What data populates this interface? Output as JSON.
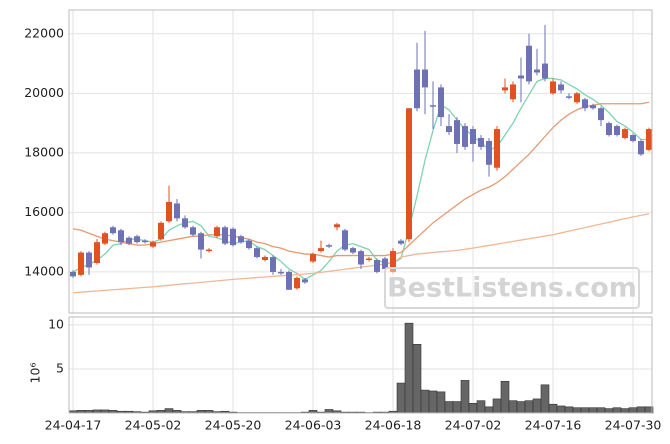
{
  "chart_data": [
    {
      "type": "candlestick",
      "open": [
        14000,
        13900,
        14650,
        14300,
        14950,
        15500,
        15400,
        15150,
        15200,
        15050,
        14850,
        15100,
        15700,
        16300,
        15800,
        15500,
        15300,
        14700,
        15200,
        15500,
        15450,
        15200,
        15050,
        14800,
        14400,
        14500,
        14000,
        14000,
        13450,
        13750,
        14350,
        14700,
        14900,
        15500,
        15400,
        14800,
        14700,
        14400,
        14400,
        14450,
        14000,
        15050,
        15100,
        20800,
        20800,
        19600,
        20200,
        18900,
        19100,
        18900,
        18800,
        18500,
        18400,
        17500,
        20100,
        19800,
        20600,
        21600,
        20800,
        21000,
        20000,
        20300,
        19900,
        19700,
        19800,
        19600,
        19500,
        19000,
        18900,
        18500,
        18600,
        18400,
        18100
      ],
      "high": [
        14050,
        14700,
        14700,
        15100,
        15350,
        15550,
        15450,
        15200,
        15250,
        15100,
        15050,
        15700,
        16900,
        16450,
        15900,
        15550,
        15350,
        14800,
        15550,
        15550,
        15500,
        15250,
        15100,
        14850,
        14550,
        14550,
        14100,
        14050,
        13850,
        13800,
        14650,
        15050,
        14950,
        15650,
        15450,
        14850,
        14750,
        14500,
        14450,
        14500,
        14800,
        15100,
        19500,
        21700,
        22100,
        20400,
        20300,
        19300,
        19200,
        19000,
        18900,
        18600,
        18500,
        18900,
        20500,
        20400,
        21200,
        22000,
        21500,
        22300,
        20500,
        20400,
        20000,
        20050,
        19850,
        19650,
        19550,
        19050,
        18950,
        18850,
        18650,
        18450,
        18850
      ],
      "low": [
        13800,
        13850,
        13900,
        14250,
        14900,
        15250,
        14900,
        14900,
        14950,
        14950,
        14800,
        15050,
        15650,
        15700,
        15450,
        15200,
        14450,
        14650,
        15150,
        14900,
        14850,
        14950,
        14750,
        14450,
        14350,
        13900,
        13900,
        13400,
        13400,
        13600,
        14300,
        14650,
        14800,
        15400,
        14700,
        14600,
        14100,
        14350,
        13950,
        14050,
        13950,
        14900,
        15000,
        19400,
        19300,
        18800,
        18900,
        18600,
        18000,
        18100,
        17700,
        18100,
        17200,
        17400,
        20000,
        19700,
        19700,
        20300,
        20600,
        20400,
        19950,
        20000,
        19800,
        19650,
        19400,
        19450,
        18900,
        18550,
        18550,
        18450,
        18350,
        17900,
        18050
      ],
      "close": [
        13850,
        14650,
        14150,
        15000,
        15300,
        15300,
        15000,
        14950,
        15000,
        15000,
        15000,
        15650,
        16350,
        15800,
        15500,
        15250,
        14750,
        14750,
        15500,
        14950,
        14900,
        15000,
        14800,
        14500,
        14500,
        14000,
        13950,
        13400,
        13800,
        13650,
        14600,
        14800,
        14850,
        15600,
        14750,
        14650,
        14250,
        14450,
        14000,
        14100,
        14700,
        14950,
        19500,
        19500,
        20200,
        19550,
        19200,
        18700,
        18300,
        18200,
        18300,
        18200,
        17600,
        18800,
        20200,
        20300,
        20500,
        20400,
        20700,
        20500,
        20400,
        20100,
        19850,
        20000,
        19500,
        19500,
        19100,
        18600,
        18600,
        18800,
        18400,
        17950,
        18800
      ],
      "up_color": "#e0521f",
      "down_color": "#6e72b4",
      "series": [
        {
          "color": "#7fd3b0",
          "values": [
            14000,
            14150,
            14250,
            14400,
            14600,
            14900,
            14950,
            15100,
            15100,
            15050,
            15000,
            15100,
            15400,
            15550,
            15650,
            15700,
            15550,
            15200,
            15150,
            15050,
            14950,
            15000,
            15050,
            14850,
            14750,
            14550,
            14350,
            14100,
            13950,
            13750,
            13900,
            14050,
            14350,
            14700,
            14900,
            14950,
            14850,
            14750,
            14400,
            14300,
            14300,
            14450,
            15450,
            16550,
            17750,
            18750,
            19600,
            19450,
            19100,
            18800,
            18550,
            18350,
            18100,
            18200,
            18600,
            19000,
            19500,
            19950,
            20400,
            20500,
            20500,
            20450,
            20300,
            20150,
            19950,
            19800,
            19600,
            19350,
            19050,
            18900,
            18700,
            18450,
            18450
          ]
        },
        {
          "color": "#e69a70",
          "values": [
            15450,
            15400,
            15300,
            15200,
            15100,
            15050,
            15000,
            14950,
            14900,
            14900,
            14950,
            15000,
            15050,
            15100,
            15150,
            15200,
            15200,
            15250,
            15250,
            15250,
            15200,
            15150,
            15100,
            15000,
            14950,
            14850,
            14800,
            14700,
            14650,
            14600,
            14600,
            14550,
            14500,
            14550,
            14550,
            14550,
            14550,
            14550,
            14550,
            14550,
            14600,
            14650,
            14900,
            15150,
            15400,
            15650,
            15850,
            16050,
            16250,
            16450,
            16600,
            16750,
            16850,
            17000,
            17200,
            17450,
            17700,
            17950,
            18250,
            18550,
            18850,
            19100,
            19300,
            19450,
            19550,
            19600,
            19650,
            19650,
            19650,
            19650,
            19650,
            19650,
            19700
          ]
        },
        {
          "color": "#f0b894",
          "values": [
            13300,
            13320,
            13340,
            13360,
            13380,
            13400,
            13420,
            13440,
            13460,
            13480,
            13500,
            13525,
            13550,
            13575,
            13600,
            13625,
            13650,
            13675,
            13700,
            13725,
            13750,
            13770,
            13790,
            13810,
            13830,
            13850,
            13870,
            13890,
            13910,
            13930,
            13950,
            13985,
            14020,
            14055,
            14090,
            14125,
            14160,
            14195,
            14230,
            14265,
            14300,
            14500,
            14550,
            14600,
            14625,
            14650,
            14675,
            14700,
            14725,
            14760,
            14800,
            14845,
            14890,
            14935,
            14980,
            15025,
            15070,
            15115,
            15160,
            15205,
            15250,
            15310,
            15370,
            15430,
            15490,
            15550,
            15610,
            15670,
            15730,
            15790,
            15850,
            15900,
            15950
          ]
        }
      ],
      "ylim": [
        12620,
        22800
      ],
      "yticks": [
        14000,
        16000,
        18000,
        20000,
        22000
      ],
      "grid": true
    },
    {
      "type": "bar",
      "color": "#666666",
      "y_label": "10⁶",
      "categories": [
        "24-04-17",
        null,
        null,
        null,
        null,
        null,
        null,
        null,
        null,
        null,
        "24-05-02",
        null,
        null,
        null,
        null,
        null,
        null,
        null,
        null,
        null,
        "24-05-20",
        null,
        null,
        null,
        null,
        null,
        null,
        null,
        null,
        null,
        "24-06-03",
        null,
        null,
        null,
        null,
        null,
        null,
        null,
        null,
        null,
        "24-06-18",
        null,
        null,
        null,
        null,
        null,
        null,
        null,
        null,
        null,
        "24-07-02",
        null,
        null,
        null,
        null,
        null,
        null,
        null,
        null,
        null,
        "24-07-16",
        null,
        null,
        null,
        null,
        null,
        null,
        null,
        null,
        null,
        "24-07-30",
        null,
        null
      ],
      "values": [
        0.25,
        0.3,
        0.3,
        0.35,
        0.35,
        0.3,
        0.2,
        0.2,
        0.15,
        0.1,
        0.25,
        0.3,
        0.5,
        0.3,
        0.15,
        0.15,
        0.3,
        0.3,
        0.15,
        0.2,
        0.1,
        0.05,
        0.05,
        0.05,
        0.05,
        0.05,
        0.05,
        0.05,
        0.05,
        0.1,
        0.3,
        0.1,
        0.4,
        0.25,
        0.1,
        0.1,
        0.1,
        0.05,
        0.1,
        0.1,
        0.2,
        3.4,
        10.2,
        7.8,
        2.6,
        2.5,
        2.4,
        1.3,
        1.3,
        3.7,
        1.1,
        1.4,
        0.7,
        1.6,
        3.6,
        1.4,
        1.3,
        1.4,
        1.6,
        3.2,
        1.0,
        0.8,
        0.7,
        0.6,
        0.6,
        0.6,
        0.6,
        0.5,
        0.6,
        0.5,
        0.6,
        0.7,
        0.7
      ],
      "ylim": [
        0,
        10.9
      ],
      "yticks": [
        5,
        10
      ],
      "grid": true
    }
  ],
  "watermark": "BestListens.com"
}
